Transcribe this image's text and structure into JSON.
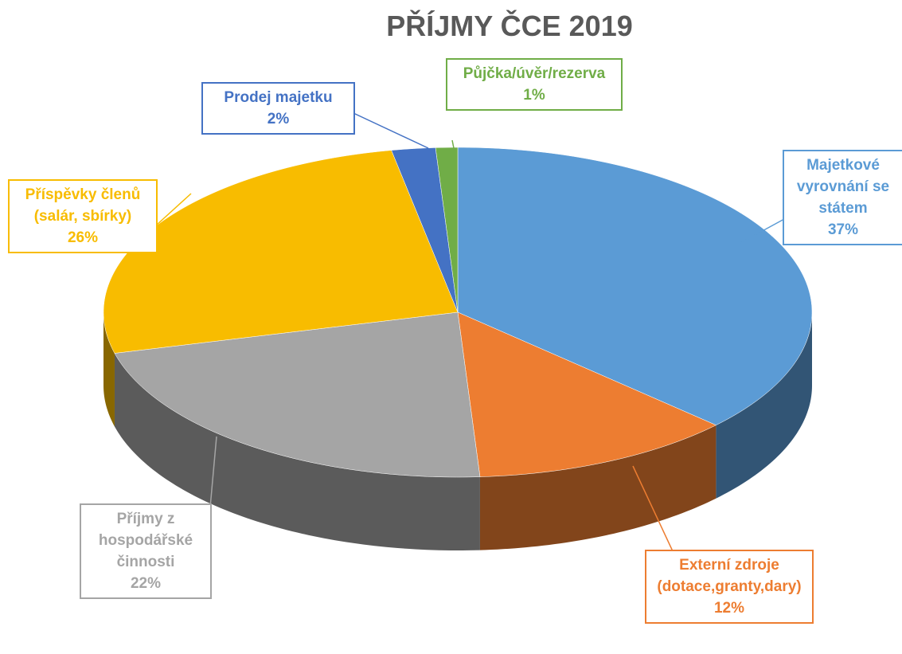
{
  "chart_data": {
    "type": "pie3d",
    "title": "PŘÍJMY ČCE 2019",
    "categories": [
      "Majetkové vyrovnání se státem",
      "Externí zdroje (dotace,granty,dary)",
      "Příjmy z hospodářské činnosti",
      "Příspěvky členů (salár, sbírky)",
      "Prodej majetku",
      "Půjčka/úvěr/rezerva"
    ],
    "values": [
      37,
      12,
      22,
      26,
      2,
      1
    ],
    "value_labels": [
      "37%",
      "12%",
      "22%",
      "26%",
      "2%",
      "1%"
    ],
    "colors": [
      "#5b9bd5",
      "#ed7d31",
      "#a5a5a5",
      "#f8bc00",
      "#4472c4",
      "#70ad47"
    ]
  }
}
